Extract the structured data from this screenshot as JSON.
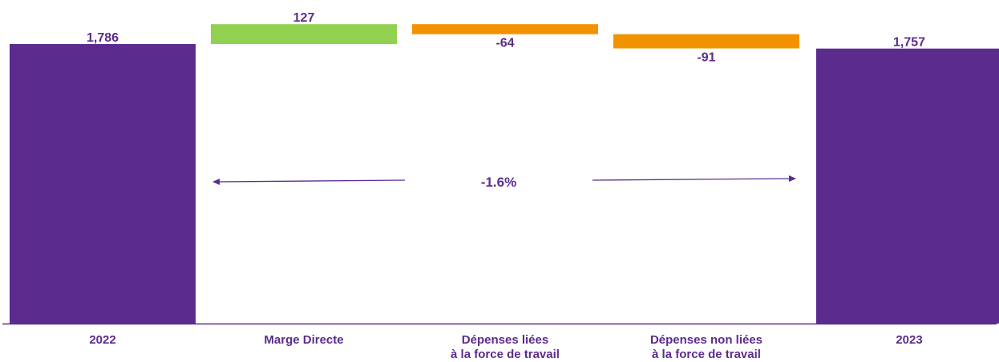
{
  "chart_data": {
    "type": "waterfall",
    "categories": [
      [
        "2022"
      ],
      [
        "Marge Directe"
      ],
      [
        "Dépenses liées",
        "à la force de travail"
      ],
      [
        "Dépenses non liées",
        "à la force de travail"
      ],
      [
        "2023"
      ]
    ],
    "steps": [
      {
        "kind": "total",
        "value": 1786,
        "label": "1,786"
      },
      {
        "kind": "delta",
        "value": 127,
        "label": "127"
      },
      {
        "kind": "delta",
        "value": -64,
        "label": "-64"
      },
      {
        "kind": "delta",
        "value": -91,
        "label": "-91"
      },
      {
        "kind": "total",
        "value": 1757,
        "label": "1,757"
      }
    ],
    "change_label": "-1.6%",
    "colors": {
      "total": "#5b2c8e",
      "increase": "#92d050",
      "decrease": "#f39200",
      "text": "#5b2c8e",
      "axis": "#5b2c8e"
    }
  }
}
